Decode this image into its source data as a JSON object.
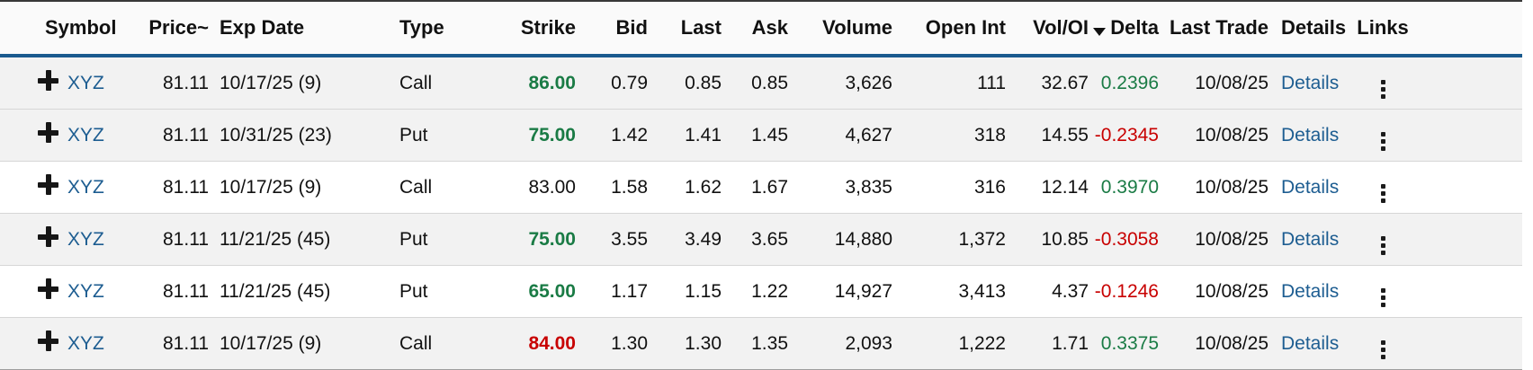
{
  "colors": {
    "accent_blue": "#1a5a8e",
    "link_blue": "#1d5d91",
    "green": "#1a7b45",
    "red": "#c80000",
    "strike_bg": "#fbf9d7",
    "row_alt_bg": "#f2f2f2"
  },
  "table": {
    "sort": {
      "column": "Vol/OI",
      "direction": "desc"
    },
    "columns": [
      {
        "label": ""
      },
      {
        "label": "Symbol"
      },
      {
        "label": "Price~"
      },
      {
        "label": "Exp Date"
      },
      {
        "label": "Type"
      },
      {
        "label": "Strike"
      },
      {
        "label": "Bid"
      },
      {
        "label": "Last"
      },
      {
        "label": "Ask"
      },
      {
        "label": "Volume"
      },
      {
        "label": "Open Int"
      },
      {
        "label": "Vol/OI"
      },
      {
        "label": "Delta"
      },
      {
        "label": "Last Trade"
      },
      {
        "label": "Details"
      },
      {
        "label": "Links"
      }
    ],
    "icons": {
      "expand_icon": "plus",
      "sort_icon": "triangle-down",
      "links_icon": "kebab-vertical"
    },
    "rows": [
      {
        "shade": "alt",
        "symbol": "XYZ",
        "price": "81.11",
        "exp_date": "10/17/25 (9)",
        "type": "Call",
        "strike": "86.00",
        "strike_class": "strike-up",
        "bid": "0.79",
        "last": "0.85",
        "ask": "0.85",
        "volume": "3,626",
        "open_int": "111",
        "vol_oi": "32.67",
        "delta": "0.2396",
        "delta_class": "delta-pos",
        "last_trade": "10/08/25",
        "details": "Details"
      },
      {
        "shade": "alt",
        "symbol": "XYZ",
        "price": "81.11",
        "exp_date": "10/31/25 (23)",
        "type": "Put",
        "strike": "75.00",
        "strike_class": "strike-up",
        "bid": "1.42",
        "last": "1.41",
        "ask": "1.45",
        "volume": "4,627",
        "open_int": "318",
        "vol_oi": "14.55",
        "delta": "-0.2345",
        "delta_class": "delta-neg",
        "last_trade": "10/08/25",
        "details": "Details"
      },
      {
        "shade": "plain",
        "symbol": "XYZ",
        "price": "81.11",
        "exp_date": "10/17/25 (9)",
        "type": "Call",
        "strike": "83.00",
        "strike_class": "strike-flat",
        "bid": "1.58",
        "last": "1.62",
        "ask": "1.67",
        "volume": "3,835",
        "open_int": "316",
        "vol_oi": "12.14",
        "delta": "0.3970",
        "delta_class": "delta-pos",
        "last_trade": "10/08/25",
        "details": "Details"
      },
      {
        "shade": "alt",
        "symbol": "XYZ",
        "price": "81.11",
        "exp_date": "11/21/25 (45)",
        "type": "Put",
        "strike": "75.00",
        "strike_class": "strike-up",
        "bid": "3.55",
        "last": "3.49",
        "ask": "3.65",
        "volume": "14,880",
        "open_int": "1,372",
        "vol_oi": "10.85",
        "delta": "-0.3058",
        "delta_class": "delta-neg",
        "last_trade": "10/08/25",
        "details": "Details"
      },
      {
        "shade": "plain",
        "symbol": "XYZ",
        "price": "81.11",
        "exp_date": "11/21/25 (45)",
        "type": "Put",
        "strike": "65.00",
        "strike_class": "strike-up",
        "bid": "1.17",
        "last": "1.15",
        "ask": "1.22",
        "volume": "14,927",
        "open_int": "3,413",
        "vol_oi": "4.37",
        "delta": "-0.1246",
        "delta_class": "delta-neg",
        "last_trade": "10/08/25",
        "details": "Details"
      },
      {
        "shade": "alt",
        "symbol": "XYZ",
        "price": "81.11",
        "exp_date": "10/17/25 (9)",
        "type": "Call",
        "strike": "84.00",
        "strike_class": "strike-down",
        "bid": "1.30",
        "last": "1.30",
        "ask": "1.35",
        "volume": "2,093",
        "open_int": "1,222",
        "vol_oi": "1.71",
        "delta": "0.3375",
        "delta_class": "delta-pos",
        "last_trade": "10/08/25",
        "details": "Details"
      }
    ]
  }
}
